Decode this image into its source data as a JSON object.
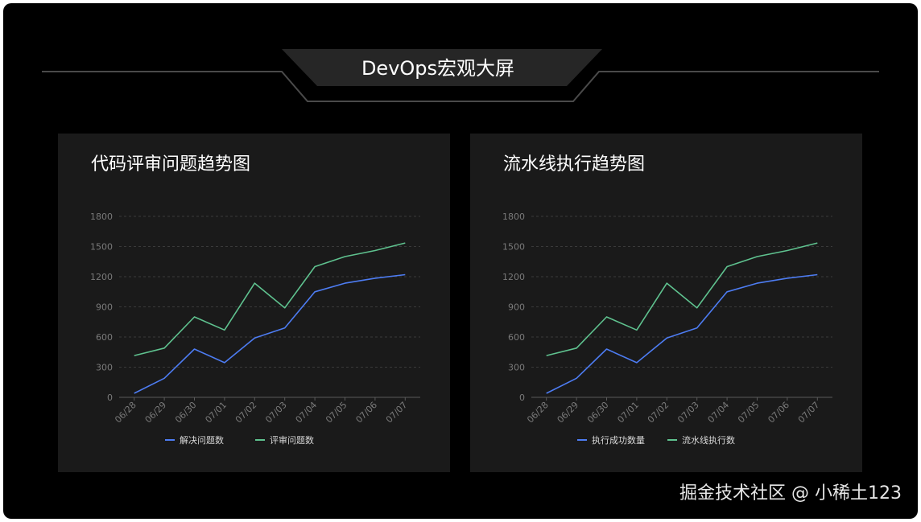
{
  "header": {
    "title": "DevOps宏观大屏"
  },
  "charts": [
    {
      "title": "代码评审问题趋势图"
    },
    {
      "title": "流水线执行趋势图"
    }
  ],
  "colors": {
    "series1": "#4d7cf2",
    "series2": "#5fc28f",
    "grid": "#3a3a3a",
    "tick": "#7a7a7a"
  },
  "chart_data": [
    {
      "type": "line",
      "title": "代码评审问题趋势图",
      "categories": [
        "06/28",
        "06/29",
        "06/30",
        "07/01",
        "07/02",
        "07/03",
        "07/04",
        "07/05",
        "07/06",
        "07/07"
      ],
      "ylim": [
        0,
        1800
      ],
      "yticks": [
        0,
        300,
        600,
        900,
        1200,
        1500,
        1800
      ],
      "grid": true,
      "legend_position": "bottom",
      "series": [
        {
          "name": "解决问题数",
          "values": [
            40,
            190,
            480,
            345,
            590,
            690,
            1050,
            1135,
            1185,
            1220
          ]
        },
        {
          "name": "评审问题数",
          "values": [
            415,
            490,
            800,
            670,
            1135,
            890,
            1300,
            1400,
            1460,
            1535
          ]
        }
      ]
    },
    {
      "type": "line",
      "title": "流水线执行趋势图",
      "categories": [
        "06/28",
        "06/29",
        "06/30",
        "07/01",
        "07/02",
        "07/03",
        "07/04",
        "07/05",
        "07/06",
        "07/07"
      ],
      "ylim": [
        0,
        1800
      ],
      "yticks": [
        0,
        300,
        600,
        900,
        1200,
        1500,
        1800
      ],
      "grid": true,
      "legend_position": "bottom",
      "series": [
        {
          "name": "执行成功数量",
          "values": [
            40,
            190,
            480,
            345,
            590,
            690,
            1050,
            1135,
            1185,
            1220
          ]
        },
        {
          "name": "流水线执行数",
          "values": [
            415,
            490,
            800,
            670,
            1135,
            890,
            1300,
            1400,
            1460,
            1535
          ]
        }
      ]
    }
  ],
  "watermark": "掘金技术社区 @ 小稀土123"
}
